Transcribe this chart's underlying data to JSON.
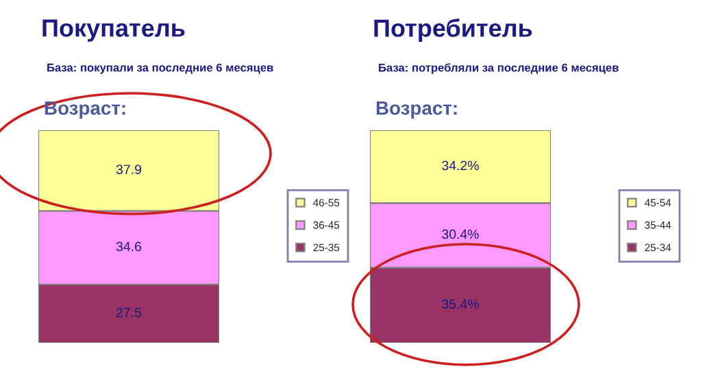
{
  "chart_data": [
    {
      "type": "bar",
      "title": "Покупатель",
      "subtitle": "База: покупали за последние 6 месяцев",
      "annotations": [
        "Возраст:"
      ],
      "categories": [
        null
      ],
      "stacked": true,
      "legend": "right",
      "series": [
        {
          "name": "25-35",
          "color": "#993366",
          "values": [
            27.5
          ],
          "value_labels": [
            "27.5"
          ]
        },
        {
          "name": "36-45",
          "color": "#ff99ff",
          "values": [
            34.6
          ],
          "value_labels": [
            "34.6"
          ]
        },
        {
          "name": "46-55",
          "color": "#ffff99",
          "values": [
            37.9
          ],
          "value_labels": [
            "37.9"
          ]
        }
      ]
    },
    {
      "type": "bar",
      "title": "Потребитель",
      "subtitle": "База: потребляли за последние 6 месяцев",
      "annotations": [
        "Возраст:"
      ],
      "categories": [
        null
      ],
      "stacked": true,
      "legend": "right",
      "series": [
        {
          "name": "25-34",
          "color": "#993366",
          "values": [
            35.4
          ],
          "value_labels": [
            "35.4%"
          ]
        },
        {
          "name": "35-44",
          "color": "#ff99ff",
          "values": [
            30.4
          ],
          "value_labels": [
            "30.4%"
          ]
        },
        {
          "name": "45-54",
          "color": "#ffff99",
          "values": [
            34.2
          ],
          "value_labels": [
            "34.2%"
          ]
        }
      ]
    }
  ]
}
